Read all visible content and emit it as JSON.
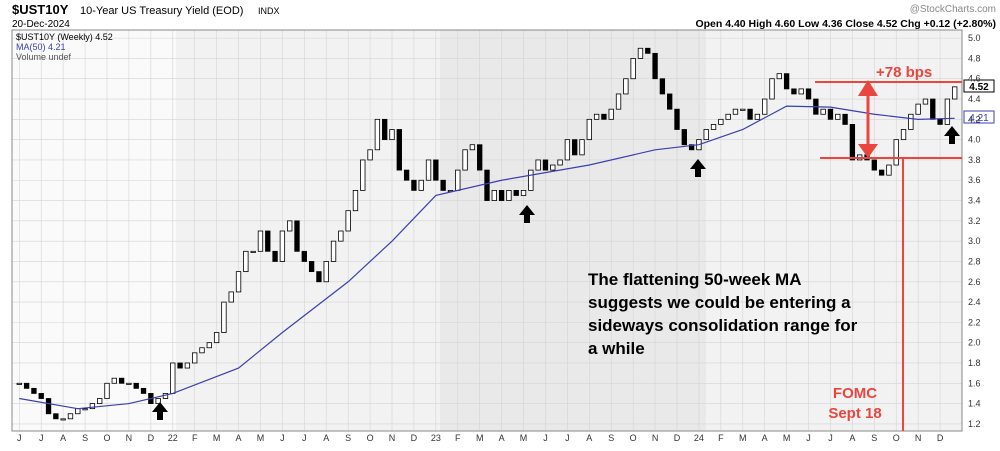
{
  "chart_data": {
    "type": "candlestick",
    "title": "$UST10Y",
    "subtitle": "10-Year US Treasury Yield (EOD)",
    "exchange": "INDX",
    "date": "20-Dec-2024",
    "watermark": "@StockCharts.com",
    "quote": "Open 4.40  High 4.60  Low 4.36  Close 4.52  Chg +0.12 (+2.80%)",
    "legend": [
      "$UST10Y (Weekly) 4.52",
      "MA(50) 4.21",
      "Volume undef"
    ],
    "price_tag": "4.52",
    "ma_tag": "4.21",
    "annotations": [
      "+78 bps",
      "FOMC",
      "Sept 18",
      "The flattening 50-week MA",
      "suggests we could be entering a",
      "sideways consolidation range for",
      "a while"
    ],
    "color_up": "#ffffff",
    "color_down": "#000000",
    "values": [
      1.6,
      1.55,
      1.5,
      1.45,
      1.3,
      1.25,
      1.25,
      1.3,
      1.35,
      1.35,
      1.4,
      1.45,
      1.6,
      1.65,
      1.6,
      1.6,
      1.55,
      1.5,
      1.4,
      1.45,
      1.5,
      1.8,
      1.75,
      1.8,
      1.9,
      1.95,
      2.0,
      2.1,
      2.4,
      2.5,
      2.7,
      2.9,
      2.9,
      3.1,
      2.9,
      2.8,
      3.1,
      3.2,
      2.9,
      2.8,
      2.7,
      2.6,
      2.8,
      3.0,
      3.1,
      3.3,
      3.5,
      3.8,
      3.9,
      4.2,
      4.0,
      4.1,
      3.7,
      3.6,
      3.5,
      3.6,
      3.8,
      3.6,
      3.5,
      3.5,
      3.7,
      3.9,
      3.95,
      3.7,
      3.4,
      3.5,
      3.4,
      3.5,
      3.45,
      3.5,
      3.7,
      3.8,
      3.7,
      3.75,
      3.8,
      4.0,
      3.85,
      4.0,
      4.2,
      4.25,
      4.2,
      4.3,
      4.45,
      4.6,
      4.8,
      4.9,
      4.85,
      4.6,
      4.45,
      4.3,
      4.1,
      3.95,
      3.9,
      4.0,
      4.1,
      4.15,
      4.2,
      4.25,
      4.3,
      4.3,
      4.2,
      4.25,
      4.4,
      4.6,
      4.65,
      4.5,
      4.45,
      4.5,
      4.4,
      4.25,
      4.3,
      4.2,
      4.25,
      4.15,
      3.8,
      3.85,
      3.8,
      3.7,
      3.65,
      3.75,
      4.0,
      4.1,
      4.25,
      4.35,
      4.4,
      4.2,
      4.15,
      4.4,
      4.52
    ],
    "ma": {
      "name": "MA(50)",
      "color": "#3a3fb0",
      "x": [
        0,
        8,
        15,
        21,
        30,
        36,
        45,
        51,
        57,
        66,
        78,
        87,
        93,
        99,
        105,
        111,
        117,
        123,
        128
      ],
      "values": [
        1.45,
        1.35,
        1.4,
        1.5,
        1.75,
        2.1,
        2.6,
        3.0,
        3.45,
        3.6,
        3.75,
        3.9,
        3.95,
        4.1,
        4.33,
        4.32,
        4.25,
        4.2,
        4.21
      ]
    },
    "xlim": [
      -1,
      129
    ],
    "xticks": [
      {
        "value": 0,
        "label": "J"
      },
      {
        "value": 3,
        "label": "J"
      },
      {
        "value": 6,
        "label": "A"
      },
      {
        "value": 9,
        "label": "S"
      },
      {
        "value": 12,
        "label": "O"
      },
      {
        "value": 15,
        "label": "N"
      },
      {
        "value": 18,
        "label": "D"
      },
      {
        "value": 21,
        "label": "22"
      },
      {
        "value": 24,
        "label": "F"
      },
      {
        "value": 27,
        "label": "M"
      },
      {
        "value": 30,
        "label": "A"
      },
      {
        "value": 33,
        "label": "M"
      },
      {
        "value": 36,
        "label": "J"
      },
      {
        "value": 39,
        "label": "J"
      },
      {
        "value": 42,
        "label": "A"
      },
      {
        "value": 45,
        "label": "S"
      },
      {
        "value": 48,
        "label": "O"
      },
      {
        "value": 51,
        "label": "N"
      },
      {
        "value": 54,
        "label": "D"
      },
      {
        "value": 57,
        "label": "23"
      },
      {
        "value": 60,
        "label": "F"
      },
      {
        "value": 63,
        "label": "M"
      },
      {
        "value": 66,
        "label": "A"
      },
      {
        "value": 69,
        "label": "M"
      },
      {
        "value": 72,
        "label": "J"
      },
      {
        "value": 75,
        "label": "J"
      },
      {
        "value": 78,
        "label": "A"
      },
      {
        "value": 81,
        "label": "S"
      },
      {
        "value": 84,
        "label": "O"
      },
      {
        "value": 87,
        "label": "N"
      },
      {
        "value": 90,
        "label": "D"
      },
      {
        "value": 93,
        "label": "24"
      },
      {
        "value": 96,
        "label": "F"
      },
      {
        "value": 99,
        "label": "M"
      },
      {
        "value": 102,
        "label": "A"
      },
      {
        "value": 105,
        "label": "M"
      },
      {
        "value": 108,
        "label": "J"
      },
      {
        "value": 111,
        "label": "J"
      },
      {
        "value": 114,
        "label": "A"
      },
      {
        "value": 117,
        "label": "S"
      },
      {
        "value": 120,
        "label": "O"
      },
      {
        "value": 123,
        "label": "N"
      },
      {
        "value": 126,
        "label": "D"
      }
    ],
    "ylim": [
      1.13,
      5.08
    ],
    "yticks": [
      1.2,
      1.4,
      1.6,
      1.8,
      {
        "value": 2,
        "label": "2.0"
      },
      2.2,
      2.4,
      2.6,
      2.8,
      {
        "value": 3,
        "label": "3.0"
      },
      3.2,
      3.4,
      3.6,
      3.8,
      {
        "value": 4,
        "label": "4.0"
      },
      4.2,
      4.4,
      4.6,
      4.8,
      {
        "value": 5,
        "label": "5.0"
      }
    ],
    "grid": true
  }
}
